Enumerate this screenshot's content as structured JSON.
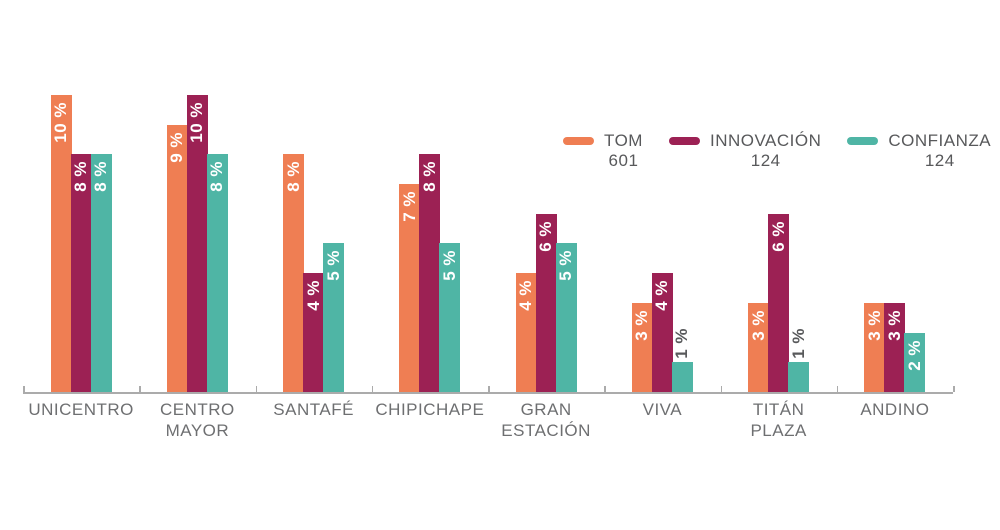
{
  "legend": {
    "items": [
      {
        "name": "TOM",
        "count": "601",
        "color_key": "tom"
      },
      {
        "name": "INNOVACIÓN",
        "count": "124",
        "color_key": "innovacion"
      },
      {
        "name": "CONFIANZA",
        "count": "124",
        "color_key": "confianza"
      }
    ]
  },
  "colors": {
    "tom": "#EF7E53",
    "innovacion": "#9C2154",
    "confianza": "#4FB5A5",
    "axis": "#ABABAB",
    "category_label": "#6E6F71",
    "legend_text": "#58595B",
    "outside_label": "#58595B",
    "inside_label": "#FFFFFF"
  },
  "chart_data": {
    "type": "bar",
    "title": "",
    "xlabel": "",
    "ylabel": "",
    "value_suffix": " %",
    "ylim": [
      0,
      10.5
    ],
    "grid": false,
    "legend_position": "top-right",
    "bar_label_rotation": -90,
    "outside_label_below": 2,
    "categories": [
      "UNICENTRO",
      "CENTRO MAYOR",
      "SANTAFÉ",
      "CHIPICHAPE",
      "GRAN ESTACIÓN",
      "VIVA",
      "TITÁN PLAZA",
      "ANDINO"
    ],
    "category_lines": [
      [
        "UNICENTRO"
      ],
      [
        "CENTRO",
        "MAYOR"
      ],
      [
        "SANTAFÉ"
      ],
      [
        "CHIPICHAPE"
      ],
      [
        "GRAN",
        "ESTACIÓN"
      ],
      [
        "VIVA"
      ],
      [
        "TITÁN",
        "PLAZA"
      ],
      [
        "ANDINO"
      ]
    ],
    "series": [
      {
        "name": "TOM",
        "count": "601",
        "color_key": "tom",
        "values": [
          10,
          9,
          8,
          7,
          4,
          3,
          3,
          3
        ]
      },
      {
        "name": "INNOVACIÓN",
        "count": "124",
        "color_key": "innovacion",
        "values": [
          8,
          10,
          4,
          8,
          6,
          4,
          6,
          3
        ]
      },
      {
        "name": "CONFIANZA",
        "count": "124",
        "color_key": "confianza",
        "values": [
          8,
          8,
          5,
          5,
          5,
          1,
          1,
          2
        ]
      }
    ]
  }
}
